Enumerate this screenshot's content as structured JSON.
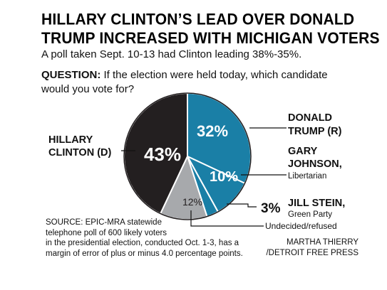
{
  "header": {
    "title_line1": "HILLARY CLINTON’S LEAD OVER DONALD",
    "title_line2": "TRUMP INCREASED WITH MICHIGAN VOTERS",
    "subtitle": "A poll taken Sept. 10-13 had Clinton leading 38%-35%.",
    "question_label": "QUESTION:",
    "question_text": " If the election were held today, which candidate would you vote for?"
  },
  "chart_data": {
    "type": "pie",
    "title": "",
    "slices": [
      {
        "name": "DONALD TRUMP (R)",
        "value": 32,
        "label": "32%",
        "color": "#1a7fa6"
      },
      {
        "name": "GARY JOHNSON, Libertarian",
        "value": 10,
        "label": "10%",
        "color": "#1a7fa6"
      },
      {
        "name": "JILL STEIN, Green Party",
        "value": 3,
        "label": "3%",
        "color": "#1a7fa6"
      },
      {
        "name": "Undecided/refused",
        "value": 12,
        "label": "12%",
        "color": "#a7a9ac"
      },
      {
        "name": "HILLARY CLINTON (D)",
        "value": 43,
        "label": "43%",
        "color": "#231f20"
      }
    ],
    "legend": "external labels with leader lines"
  },
  "labels": {
    "clinton_line1": "HILLARY",
    "clinton_line2": "CLINTON (D)",
    "trump_line1": "DONALD",
    "trump_line2": "TRUMP (R)",
    "johnson_line1": "GARY",
    "johnson_line2": "JOHNSON,",
    "johnson_party": "Libertarian",
    "stein_name": "JILL STEIN,",
    "stein_party": "Green Party",
    "undecided": "Undecided/refused"
  },
  "footer": {
    "source_line1": "SOURCE: EPIC-MRA statewide",
    "source_line2": "telephone poll of 600 likely voters",
    "source_line3": "in the presidential election, conducted Oct. 1-3, has a",
    "source_line4": "margin of error of plus or minus 4.0 percentage points.",
    "credit_line1": "MARTHA THIERRY",
    "credit_line2": "/DETROIT FREE PRESS"
  }
}
